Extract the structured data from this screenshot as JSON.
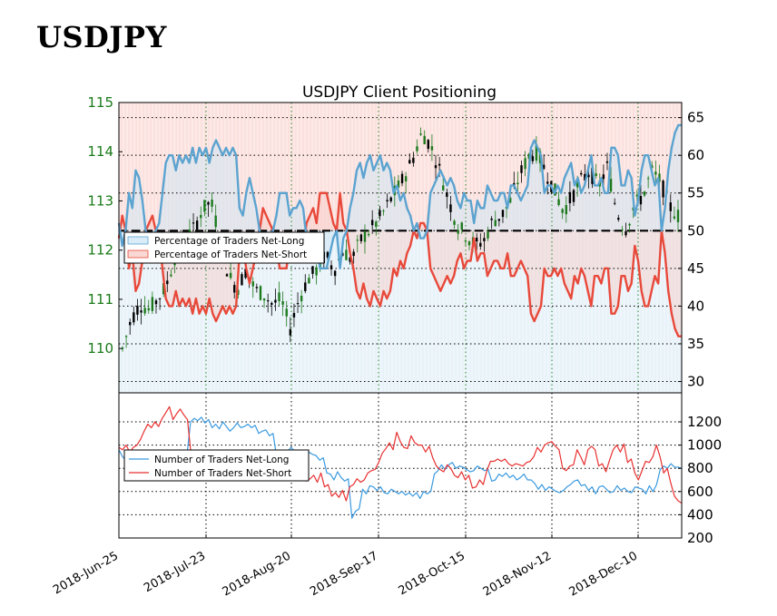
{
  "page": {
    "title": "USDJPY"
  },
  "chart_data": [
    {
      "type": "candlestick+line",
      "title": "USDJPY Client Positioning",
      "left_axis": {
        "ticks": [
          "110",
          "111",
          "112",
          "113",
          "114",
          "115"
        ],
        "range": [
          109.1,
          115
        ]
      },
      "right_axis": {
        "ticks": [
          "30",
          "35",
          "40",
          "45",
          "50",
          "55",
          "60",
          "65"
        ],
        "range": [
          28.5,
          67
        ]
      },
      "threshold": 50,
      "legend": {
        "placement": "middle-left",
        "entries": [
          "Percentage of Traders Net-Long",
          "Percentage of Traders Net-Short"
        ]
      },
      "colors": {
        "net_long": "#5ba3d0",
        "net_short": "#e8493a",
        "long_fill": "#d9ecf7",
        "short_fill": "#f9d7d3",
        "up_candle": "#1c7a1c",
        "down_candle": "#000000"
      },
      "series": [
        {
          "name": "Percentage of Traders Net-Long",
          "values": [
            51,
            49,
            45,
            44,
            45,
            46,
            55,
            53,
            52,
            55,
            53,
            58,
            57,
            54,
            50,
            49,
            48,
            48,
            50,
            51,
            55,
            56,
            59,
            60,
            60,
            58,
            60,
            60,
            59,
            59,
            60,
            60,
            59,
            59,
            61,
            61,
            61,
            59,
            59,
            61,
            60,
            60,
            61,
            61,
            59,
            59,
            61,
            61,
            61,
            62,
            61,
            61,
            61,
            61,
            60,
            61,
            60,
            60,
            61,
            61,
            61,
            60,
            61,
            60,
            53,
            52,
            55,
            57,
            56,
            53,
            50,
            47,
            48,
            48,
            49,
            49,
            50,
            51,
            55,
            55,
            56,
            55,
            55,
            55,
            55,
            52,
            53,
            53,
            52,
            53,
            53,
            54,
            53,
            53,
            53,
            49,
            48,
            47,
            49,
            45,
            46,
            45,
            45,
            45,
            45,
            47,
            47,
            49,
            50,
            45,
            49,
            49,
            50,
            50,
            53,
            53,
            53,
            55,
            58,
            58,
            59,
            57,
            57,
            59,
            59,
            59,
            60,
            60,
            59,
            58,
            59,
            59,
            60,
            60,
            60,
            58,
            59,
            59,
            58,
            59,
            58,
            55,
            56,
            56,
            56,
            55,
            54,
            55,
            53,
            53,
            52,
            50,
            51,
            50,
            49,
            49,
            49,
            50,
            55,
            55,
            56,
            57,
            58,
            58,
            57,
            56,
            56,
            57,
            56,
            56,
            54,
            53,
            55,
            53,
            54,
            54,
            54,
            51,
            54,
            54,
            53,
            53,
            53,
            53,
            53,
            56,
            56,
            55,
            54,
            54,
            54,
            54,
            55,
            55,
            55,
            53,
            56,
            56,
            56,
            56,
            56,
            56,
            55,
            55,
            54,
            54,
            54,
            55,
            55,
            55,
            55,
            56,
            61,
            61,
            62,
            61,
            61,
            61,
            61,
            60,
            55,
            55,
            56,
            56,
            56,
            56,
            55,
            56,
            56,
            55,
            57,
            57,
            57,
            58,
            59,
            58,
            56,
            57,
            57,
            55,
            56,
            56,
            58,
            59,
            60,
            59,
            56,
            56,
            56,
            56,
            57,
            56,
            55,
            55,
            55,
            55,
            61,
            61,
            61,
            61,
            60,
            56,
            56,
            56,
            58,
            58,
            58,
            57,
            57,
            52,
            52,
            54,
            54,
            54,
            58,
            60,
            60,
            60,
            60,
            60,
            59,
            58,
            58,
            56,
            57,
            57,
            57,
            50,
            51,
            53,
            57,
            58,
            59,
            61,
            62,
            63,
            64,
            64,
            64
          ],
          "display_series": [
            51,
            48,
            50,
            55,
            53,
            58,
            57,
            54,
            50,
            49,
            48,
            50,
            51,
            55,
            59,
            60,
            60,
            58,
            60,
            59,
            60,
            59,
            61,
            59,
            61,
            60,
            61,
            59,
            61,
            62,
            61,
            60,
            61,
            60,
            61,
            60,
            53,
            52,
            55,
            57,
            55,
            53,
            50,
            47,
            48,
            49,
            50,
            52,
            55,
            55,
            55,
            52,
            53,
            53,
            54,
            53,
            49,
            48,
            47,
            49,
            45,
            45,
            45,
            47,
            49,
            50,
            45,
            49,
            50,
            53,
            55,
            58,
            59,
            57,
            59,
            60,
            58,
            59,
            60,
            58,
            59,
            58,
            55,
            56,
            54,
            55,
            53,
            52,
            50,
            51,
            49,
            49,
            50,
            55,
            56,
            57,
            58,
            57,
            56,
            57,
            56,
            54,
            53,
            55,
            54,
            54,
            51,
            54,
            53,
            53,
            56,
            55,
            54,
            54,
            55,
            55,
            53,
            56,
            56,
            55,
            54,
            55,
            56,
            61,
            62,
            61,
            60,
            55,
            56,
            56,
            55,
            56,
            55,
            57,
            58,
            59,
            56,
            57,
            55,
            56,
            58,
            60,
            56,
            56,
            57,
            55,
            55,
            61,
            61,
            60,
            56,
            56,
            58,
            57,
            52,
            54,
            58,
            60,
            60,
            58,
            56,
            57,
            50,
            53,
            58,
            61,
            63,
            64,
            64
          ]
        },
        {
          "name": "Percentage of Traders Net-Short"
        }
      ]
    },
    {
      "type": "line",
      "right_axis": {
        "ticks": [
          "200",
          "400",
          "600",
          "800",
          "1000",
          "1200"
        ],
        "range": [
          200,
          1450
        ]
      },
      "x_ticks": [
        "2018-Jun-25",
        "2018-Jul-23",
        "2018-Aug-20",
        "2018-Sep-17",
        "2018-Oct-15",
        "2018-Nov-12",
        "2018-Dec-10"
      ],
      "legend": {
        "placement": "middle-left",
        "entries": [
          "Number of Traders Net-Long",
          "Number of Traders Net-Short"
        ]
      },
      "colors": {
        "net_long": "#3a9ae0",
        "net_short": "#e83030"
      },
      "series": [
        {
          "name": "Number of Traders Net-Long",
          "values": [
            960,
            900,
            870,
            920,
            910,
            880,
            890,
            940,
            930,
            900,
            930,
            880,
            890,
            930,
            880,
            900,
            920,
            950,
            900,
            920,
            1200,
            1230,
            1210,
            1240,
            1190,
            1220,
            1150,
            1180,
            1140,
            1200,
            1160,
            1120,
            1150,
            1190,
            1150,
            1160,
            1180,
            1150,
            1170,
            1100,
            1120,
            1130,
            1080,
            1100,
            900,
            920,
            850,
            940,
            980,
            950,
            920,
            900,
            880,
            940,
            920,
            910,
            870,
            890,
            760,
            750,
            700,
            770,
            720,
            690,
            710,
            370,
            430,
            450,
            620,
            580,
            650,
            640,
            610,
            640,
            590,
            580,
            620,
            600,
            580,
            600,
            570,
            590,
            560,
            590,
            540,
            600,
            580,
            600,
            750,
            780,
            830,
            790,
            830,
            850,
            800,
            820,
            810,
            790,
            770,
            780,
            820,
            800,
            780,
            790,
            690,
            700,
            750,
            730,
            760,
            720,
            740,
            700,
            720,
            750,
            700,
            700,
            670,
            620,
            660,
            610,
            640,
            620,
            600,
            590,
            610,
            640,
            660,
            690,
            700,
            650,
            660,
            610,
            640,
            580,
            640,
            650,
            620,
            590,
            600,
            650,
            610,
            630,
            600,
            590,
            640,
            630,
            620,
            580,
            650,
            600,
            660,
            790,
            820,
            800,
            840,
            810,
            810,
            800
          ]
        },
        {
          "name": "Number of Traders Net-Short",
          "values": [
            980,
            960,
            1000,
            940,
            980,
            1000,
            1050,
            1120,
            1180,
            1150,
            1200,
            1160,
            1230,
            1280,
            1330,
            1220,
            1270,
            1310,
            1260,
            1220,
            920,
            900,
            850,
            870,
            830,
            850,
            860,
            900,
            850,
            880,
            880,
            860,
            920,
            880,
            900,
            870,
            920,
            890,
            880,
            920,
            850,
            870,
            920,
            830,
            880,
            770,
            830,
            800,
            860,
            700,
            720,
            740,
            690,
            710,
            740,
            680,
            760,
            640,
            660,
            560,
            590,
            550,
            610,
            520,
            640,
            660,
            710,
            680,
            700,
            760,
            780,
            790,
            850,
            930,
            970,
            1020,
            960,
            1110,
            1030,
            980,
            970,
            1080,
            1020,
            1000,
            1000,
            940,
            990,
            890,
            820,
            790,
            770,
            830,
            800,
            740,
            720,
            770,
            700,
            740,
            630,
            640,
            700,
            660,
            780,
            860,
            860,
            880,
            860,
            880,
            840,
            820,
            840,
            830,
            820,
            850,
            860,
            900,
            980,
            940,
            1000,
            1020,
            1030,
            990,
            960,
            800,
            780,
            820,
            830,
            960,
            900,
            830,
            960,
            990,
            960,
            820,
            840,
            770,
            870,
            960,
            1000,
            940,
            1010,
            850,
            880,
            760,
            700,
            780,
            860,
            850,
            900,
            1000,
            900,
            760,
            800,
            670,
            560,
            520,
            500
          ]
        }
      ]
    }
  ]
}
